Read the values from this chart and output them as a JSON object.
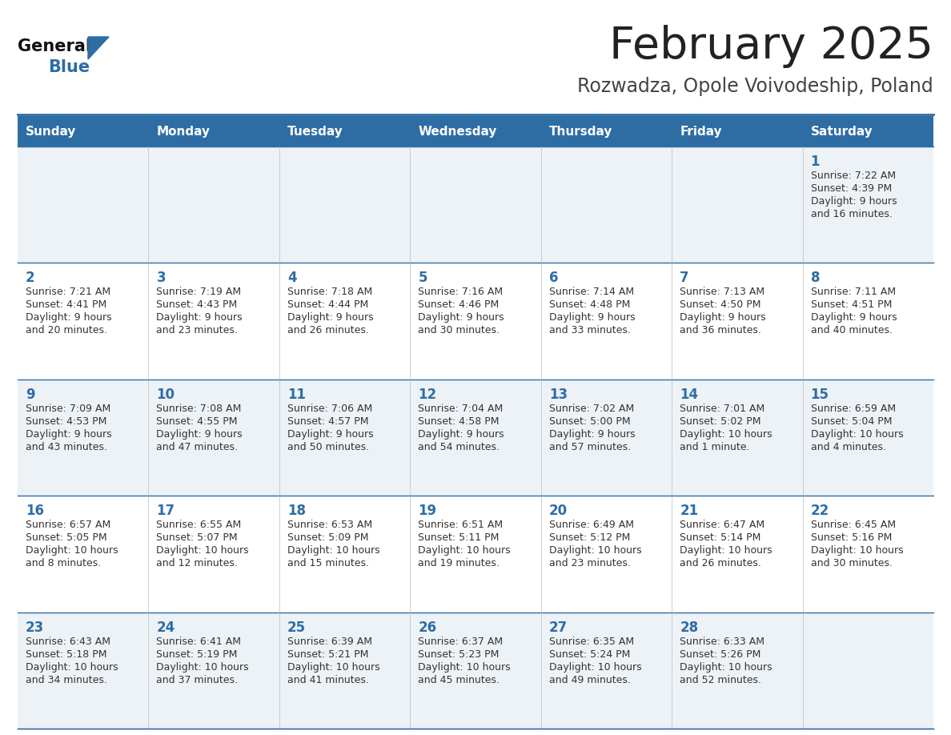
{
  "title": "February 2025",
  "subtitle": "Rozwadza, Opole Voivodeship, Poland",
  "header_color": "#2e6da4",
  "header_text_color": "#ffffff",
  "background_color": "#ffffff",
  "cell_bg_even": "#edf2f7",
  "cell_bg_odd": "#ffffff",
  "title_color": "#222222",
  "subtitle_color": "#444444",
  "day_number_color": "#2e6da4",
  "cell_text_color": "#333333",
  "line_color": "#2e6da4",
  "col_line_color": "#bbbbbb",
  "days_of_week": [
    "Sunday",
    "Monday",
    "Tuesday",
    "Wednesday",
    "Thursday",
    "Friday",
    "Saturday"
  ],
  "weeks": [
    [
      {
        "day": null
      },
      {
        "day": null
      },
      {
        "day": null
      },
      {
        "day": null
      },
      {
        "day": null
      },
      {
        "day": null
      },
      {
        "day": 1,
        "sunrise": "7:22 AM",
        "sunset": "4:39 PM",
        "daylight": "9 hours and 16 minutes."
      }
    ],
    [
      {
        "day": 2,
        "sunrise": "7:21 AM",
        "sunset": "4:41 PM",
        "daylight": "9 hours and 20 minutes."
      },
      {
        "day": 3,
        "sunrise": "7:19 AM",
        "sunset": "4:43 PM",
        "daylight": "9 hours and 23 minutes."
      },
      {
        "day": 4,
        "sunrise": "7:18 AM",
        "sunset": "4:44 PM",
        "daylight": "9 hours and 26 minutes."
      },
      {
        "day": 5,
        "sunrise": "7:16 AM",
        "sunset": "4:46 PM",
        "daylight": "9 hours and 30 minutes."
      },
      {
        "day": 6,
        "sunrise": "7:14 AM",
        "sunset": "4:48 PM",
        "daylight": "9 hours and 33 minutes."
      },
      {
        "day": 7,
        "sunrise": "7:13 AM",
        "sunset": "4:50 PM",
        "daylight": "9 hours and 36 minutes."
      },
      {
        "day": 8,
        "sunrise": "7:11 AM",
        "sunset": "4:51 PM",
        "daylight": "9 hours and 40 minutes."
      }
    ],
    [
      {
        "day": 9,
        "sunrise": "7:09 AM",
        "sunset": "4:53 PM",
        "daylight": "9 hours and 43 minutes."
      },
      {
        "day": 10,
        "sunrise": "7:08 AM",
        "sunset": "4:55 PM",
        "daylight": "9 hours and 47 minutes."
      },
      {
        "day": 11,
        "sunrise": "7:06 AM",
        "sunset": "4:57 PM",
        "daylight": "9 hours and 50 minutes."
      },
      {
        "day": 12,
        "sunrise": "7:04 AM",
        "sunset": "4:58 PM",
        "daylight": "9 hours and 54 minutes."
      },
      {
        "day": 13,
        "sunrise": "7:02 AM",
        "sunset": "5:00 PM",
        "daylight": "9 hours and 57 minutes."
      },
      {
        "day": 14,
        "sunrise": "7:01 AM",
        "sunset": "5:02 PM",
        "daylight": "10 hours and 1 minute."
      },
      {
        "day": 15,
        "sunrise": "6:59 AM",
        "sunset": "5:04 PM",
        "daylight": "10 hours and 4 minutes."
      }
    ],
    [
      {
        "day": 16,
        "sunrise": "6:57 AM",
        "sunset": "5:05 PM",
        "daylight": "10 hours and 8 minutes."
      },
      {
        "day": 17,
        "sunrise": "6:55 AM",
        "sunset": "5:07 PM",
        "daylight": "10 hours and 12 minutes."
      },
      {
        "day": 18,
        "sunrise": "6:53 AM",
        "sunset": "5:09 PM",
        "daylight": "10 hours and 15 minutes."
      },
      {
        "day": 19,
        "sunrise": "6:51 AM",
        "sunset": "5:11 PM",
        "daylight": "10 hours and 19 minutes."
      },
      {
        "day": 20,
        "sunrise": "6:49 AM",
        "sunset": "5:12 PM",
        "daylight": "10 hours and 23 minutes."
      },
      {
        "day": 21,
        "sunrise": "6:47 AM",
        "sunset": "5:14 PM",
        "daylight": "10 hours and 26 minutes."
      },
      {
        "day": 22,
        "sunrise": "6:45 AM",
        "sunset": "5:16 PM",
        "daylight": "10 hours and 30 minutes."
      }
    ],
    [
      {
        "day": 23,
        "sunrise": "6:43 AM",
        "sunset": "5:18 PM",
        "daylight": "10 hours and 34 minutes."
      },
      {
        "day": 24,
        "sunrise": "6:41 AM",
        "sunset": "5:19 PM",
        "daylight": "10 hours and 37 minutes."
      },
      {
        "day": 25,
        "sunrise": "6:39 AM",
        "sunset": "5:21 PM",
        "daylight": "10 hours and 41 minutes."
      },
      {
        "day": 26,
        "sunrise": "6:37 AM",
        "sunset": "5:23 PM",
        "daylight": "10 hours and 45 minutes."
      },
      {
        "day": 27,
        "sunrise": "6:35 AM",
        "sunset": "5:24 PM",
        "daylight": "10 hours and 49 minutes."
      },
      {
        "day": 28,
        "sunrise": "6:33 AM",
        "sunset": "5:26 PM",
        "daylight": "10 hours and 52 minutes."
      },
      {
        "day": null
      }
    ]
  ]
}
